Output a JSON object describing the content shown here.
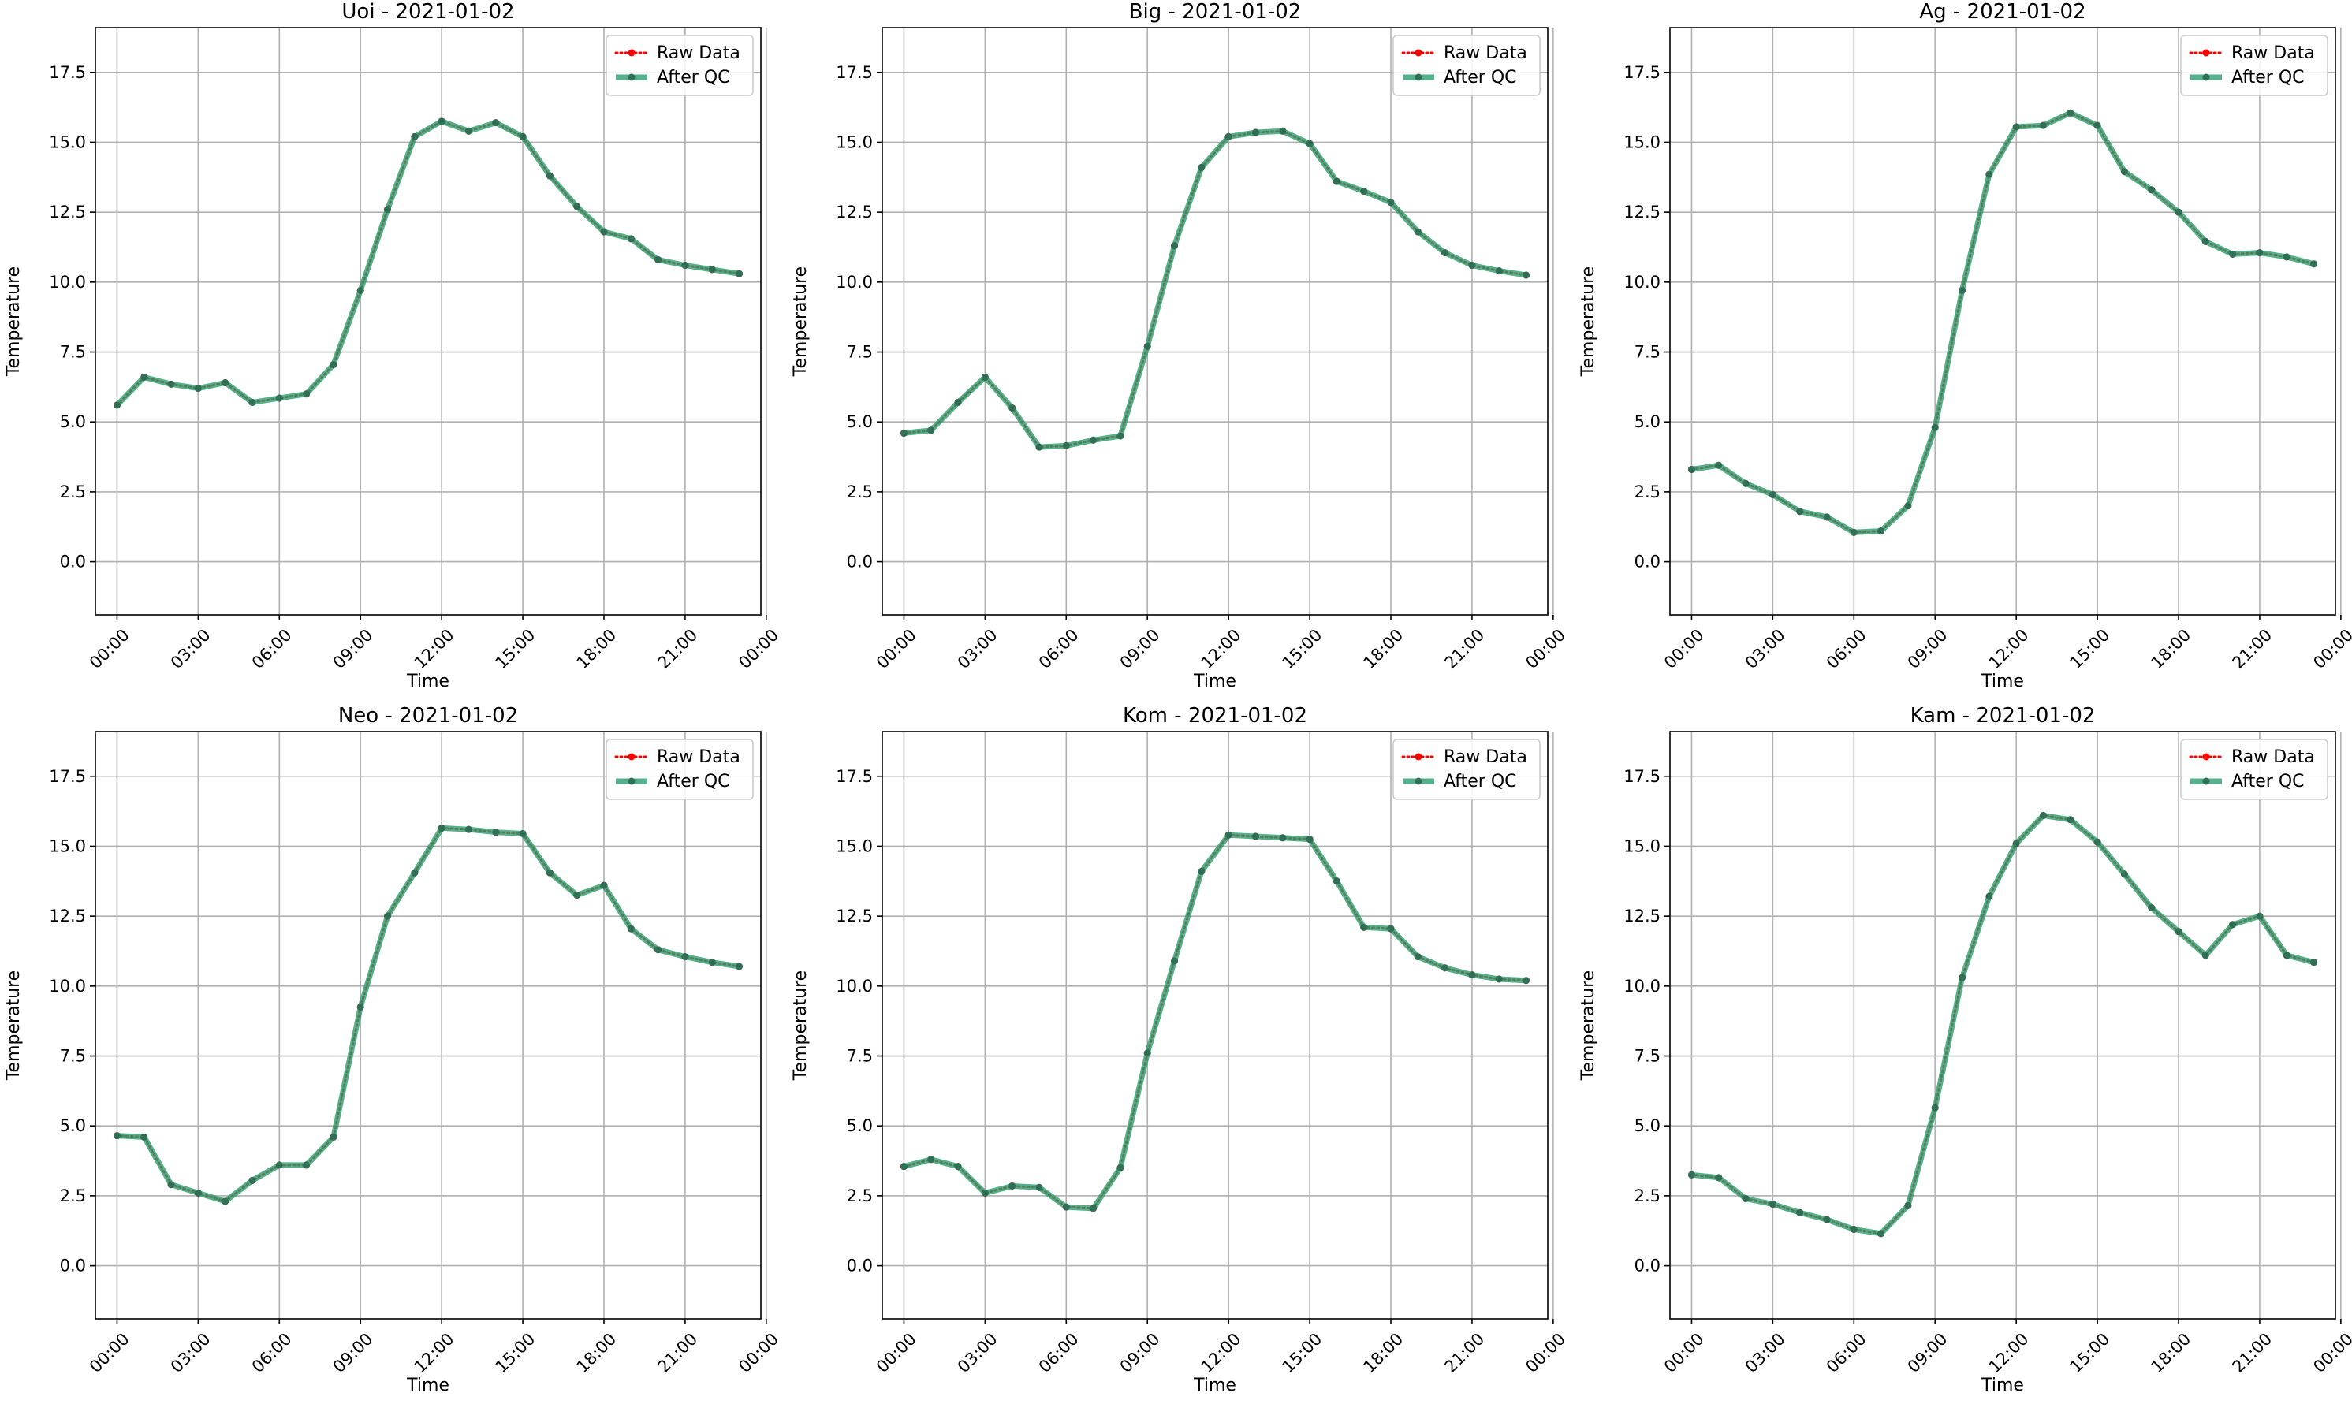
{
  "chart_data": [
    {
      "type": "line",
      "title": "Uoi - 2021-01-02",
      "xlabel": "Time",
      "ylabel": "Temperature",
      "ylim": [
        -1.9,
        19.1
      ],
      "xlim": [
        -0.8,
        23.8
      ],
      "x_unit": "hour",
      "yticks": [
        "0.0",
        "2.5",
        "5.0",
        "7.5",
        "10.0",
        "12.5",
        "15.0",
        "17.5"
      ],
      "xticks": [
        "00:00",
        "03:00",
        "06:00",
        "09:00",
        "12:00",
        "15:00",
        "18:00",
        "21:00",
        "00:00"
      ],
      "grid": true,
      "legend_position": "top-right",
      "x": [
        0,
        1,
        2,
        3,
        4,
        5,
        6,
        7,
        8,
        9,
        10,
        11,
        12,
        13,
        14,
        15,
        16,
        17,
        18,
        19,
        20,
        21,
        22,
        23
      ],
      "series": [
        {
          "name": "Raw Data",
          "color": "#ff0000",
          "values": [
            5.6,
            6.6,
            6.35,
            6.2,
            6.4,
            5.7,
            5.85,
            6.0,
            7.05,
            9.7,
            12.6,
            15.2,
            15.75,
            15.4,
            15.7,
            15.2,
            13.8,
            12.7,
            11.8,
            11.55,
            10.8,
            10.6,
            10.45,
            10.3
          ]
        },
        {
          "name": "After QC",
          "color": "#2a9d6f",
          "values": [
            5.6,
            6.6,
            6.35,
            6.2,
            6.4,
            5.7,
            5.85,
            6.0,
            7.05,
            9.7,
            12.6,
            15.2,
            15.75,
            15.4,
            15.7,
            15.2,
            13.8,
            12.7,
            11.8,
            11.55,
            10.8,
            10.6,
            10.45,
            10.3
          ]
        }
      ]
    },
    {
      "type": "line",
      "title": "Big - 2021-01-02",
      "xlabel": "Time",
      "ylabel": "Temperature",
      "ylim": [
        -1.9,
        19.1
      ],
      "xlim": [
        -0.8,
        23.8
      ],
      "x_unit": "hour",
      "yticks": [
        "0.0",
        "2.5",
        "5.0",
        "7.5",
        "10.0",
        "12.5",
        "15.0",
        "17.5"
      ],
      "xticks": [
        "00:00",
        "03:00",
        "06:00",
        "09:00",
        "12:00",
        "15:00",
        "18:00",
        "21:00",
        "00:00"
      ],
      "grid": true,
      "legend_position": "top-right",
      "x": [
        0,
        1,
        2,
        3,
        4,
        5,
        6,
        7,
        8,
        9,
        10,
        11,
        12,
        13,
        14,
        15,
        16,
        17,
        18,
        19,
        20,
        21,
        22,
        23
      ],
      "series": [
        {
          "name": "Raw Data",
          "color": "#ff0000",
          "values": [
            4.6,
            4.7,
            5.7,
            6.6,
            5.5,
            4.1,
            4.15,
            4.35,
            4.5,
            7.7,
            11.3,
            14.1,
            15.2,
            15.35,
            15.4,
            14.95,
            13.6,
            13.25,
            12.85,
            11.8,
            11.05,
            10.6,
            10.4,
            10.25
          ]
        },
        {
          "name": "After QC",
          "color": "#2a9d6f",
          "values": [
            4.6,
            4.7,
            5.7,
            6.6,
            5.5,
            4.1,
            4.15,
            4.35,
            4.5,
            7.7,
            11.3,
            14.1,
            15.2,
            15.35,
            15.4,
            14.95,
            13.6,
            13.25,
            12.85,
            11.8,
            11.05,
            10.6,
            10.4,
            10.25
          ]
        }
      ]
    },
    {
      "type": "line",
      "title": "Ag - 2021-01-02",
      "xlabel": "Time",
      "ylabel": "Temperature",
      "ylim": [
        -1.9,
        19.1
      ],
      "xlim": [
        -0.8,
        23.8
      ],
      "x_unit": "hour",
      "yticks": [
        "0.0",
        "2.5",
        "5.0",
        "7.5",
        "10.0",
        "12.5",
        "15.0",
        "17.5"
      ],
      "xticks": [
        "00:00",
        "03:00",
        "06:00",
        "09:00",
        "12:00",
        "15:00",
        "18:00",
        "21:00",
        "00:00"
      ],
      "grid": true,
      "legend_position": "top-right",
      "x": [
        0,
        1,
        2,
        3,
        4,
        5,
        6,
        7,
        8,
        9,
        10,
        11,
        12,
        13,
        14,
        15,
        16,
        17,
        18,
        19,
        20,
        21,
        22,
        23
      ],
      "series": [
        {
          "name": "Raw Data",
          "color": "#ff0000",
          "values": [
            3.3,
            3.45,
            2.8,
            2.4,
            1.8,
            1.6,
            1.05,
            1.1,
            2.0,
            4.8,
            9.7,
            13.85,
            15.55,
            15.6,
            16.05,
            15.6,
            13.95,
            13.3,
            12.5,
            11.45,
            11.0,
            11.05,
            10.9,
            10.65
          ]
        },
        {
          "name": "After QC",
          "color": "#2a9d6f",
          "values": [
            3.3,
            3.45,
            2.8,
            2.4,
            1.8,
            1.6,
            1.05,
            1.1,
            2.0,
            4.8,
            9.7,
            13.85,
            15.55,
            15.6,
            16.05,
            15.6,
            13.95,
            13.3,
            12.5,
            11.45,
            11.0,
            11.05,
            10.9,
            10.65
          ]
        }
      ]
    },
    {
      "type": "line",
      "title": "Neo - 2021-01-02",
      "xlabel": "Time",
      "ylabel": "Temperature",
      "ylim": [
        -1.9,
        19.1
      ],
      "xlim": [
        -0.8,
        23.8
      ],
      "x_unit": "hour",
      "yticks": [
        "0.0",
        "2.5",
        "5.0",
        "7.5",
        "10.0",
        "12.5",
        "15.0",
        "17.5"
      ],
      "xticks": [
        "00:00",
        "03:00",
        "06:00",
        "09:00",
        "12:00",
        "15:00",
        "18:00",
        "21:00",
        "00:00"
      ],
      "grid": true,
      "legend_position": "top-right",
      "x": [
        0,
        1,
        2,
        3,
        4,
        5,
        6,
        7,
        8,
        9,
        10,
        11,
        12,
        13,
        14,
        15,
        16,
        17,
        18,
        19,
        20,
        21,
        22,
        23
      ],
      "series": [
        {
          "name": "Raw Data",
          "color": "#ff0000",
          "values": [
            4.65,
            4.6,
            2.9,
            2.6,
            2.3,
            3.05,
            3.6,
            3.6,
            4.6,
            9.25,
            12.5,
            14.05,
            15.65,
            15.6,
            15.5,
            15.45,
            14.05,
            13.25,
            13.6,
            12.05,
            11.3,
            11.05,
            10.85,
            10.7
          ]
        },
        {
          "name": "After QC",
          "color": "#2a9d6f",
          "values": [
            4.65,
            4.6,
            2.9,
            2.6,
            2.3,
            3.05,
            3.6,
            3.6,
            4.6,
            9.25,
            12.5,
            14.05,
            15.65,
            15.6,
            15.5,
            15.45,
            14.05,
            13.25,
            13.6,
            12.05,
            11.3,
            11.05,
            10.85,
            10.7
          ]
        }
      ]
    },
    {
      "type": "line",
      "title": "Kom - 2021-01-02",
      "xlabel": "Time",
      "ylabel": "Temperature",
      "ylim": [
        -1.9,
        19.1
      ],
      "xlim": [
        -0.8,
        23.8
      ],
      "x_unit": "hour",
      "yticks": [
        "0.0",
        "2.5",
        "5.0",
        "7.5",
        "10.0",
        "12.5",
        "15.0",
        "17.5"
      ],
      "xticks": [
        "00:00",
        "03:00",
        "06:00",
        "09:00",
        "12:00",
        "15:00",
        "18:00",
        "21:00",
        "00:00"
      ],
      "grid": true,
      "legend_position": "top-right",
      "x": [
        0,
        1,
        2,
        3,
        4,
        5,
        6,
        7,
        8,
        9,
        10,
        11,
        12,
        13,
        14,
        15,
        16,
        17,
        18,
        19,
        20,
        21,
        22,
        23
      ],
      "series": [
        {
          "name": "Raw Data",
          "color": "#ff0000",
          "values": [
            3.55,
            3.8,
            3.55,
            2.6,
            2.85,
            2.8,
            2.1,
            2.05,
            3.5,
            7.6,
            10.9,
            14.1,
            15.4,
            15.35,
            15.3,
            15.25,
            13.75,
            12.1,
            12.05,
            11.05,
            10.65,
            10.4,
            10.25,
            10.2
          ]
        },
        {
          "name": "After QC",
          "color": "#2a9d6f",
          "values": [
            3.55,
            3.8,
            3.55,
            2.6,
            2.85,
            2.8,
            2.1,
            2.05,
            3.5,
            7.6,
            10.9,
            14.1,
            15.4,
            15.35,
            15.3,
            15.25,
            13.75,
            12.1,
            12.05,
            11.05,
            10.65,
            10.4,
            10.25,
            10.2
          ]
        }
      ]
    },
    {
      "type": "line",
      "title": "Kam - 2021-01-02",
      "xlabel": "Time",
      "ylabel": "Temperature",
      "ylim": [
        -1.9,
        19.1
      ],
      "xlim": [
        -0.8,
        23.8
      ],
      "x_unit": "hour",
      "yticks": [
        "0.0",
        "2.5",
        "5.0",
        "7.5",
        "10.0",
        "12.5",
        "15.0",
        "17.5"
      ],
      "xticks": [
        "00:00",
        "03:00",
        "06:00",
        "09:00",
        "12:00",
        "15:00",
        "18:00",
        "21:00",
        "00:00"
      ],
      "grid": true,
      "legend_position": "top-right",
      "x": [
        0,
        1,
        2,
        3,
        4,
        5,
        6,
        7,
        8,
        9,
        10,
        11,
        12,
        13,
        14,
        15,
        16,
        17,
        18,
        19,
        20,
        21,
        22,
        23
      ],
      "series": [
        {
          "name": "Raw Data",
          "color": "#ff0000",
          "values": [
            3.25,
            3.15,
            2.4,
            2.2,
            1.9,
            1.65,
            1.3,
            1.15,
            2.15,
            5.65,
            10.3,
            13.2,
            15.1,
            16.1,
            15.95,
            15.15,
            14.0,
            12.8,
            11.95,
            11.1,
            12.2,
            12.5,
            11.1,
            10.85
          ]
        },
        {
          "name": "After QC",
          "color": "#2a9d6f",
          "values": [
            3.25,
            3.15,
            2.4,
            2.2,
            1.9,
            1.65,
            1.3,
            1.15,
            2.15,
            5.65,
            10.3,
            13.2,
            15.1,
            16.1,
            15.95,
            15.15,
            14.0,
            12.8,
            11.95,
            11.1,
            12.2,
            12.5,
            11.1,
            10.85
          ]
        }
      ]
    }
  ]
}
